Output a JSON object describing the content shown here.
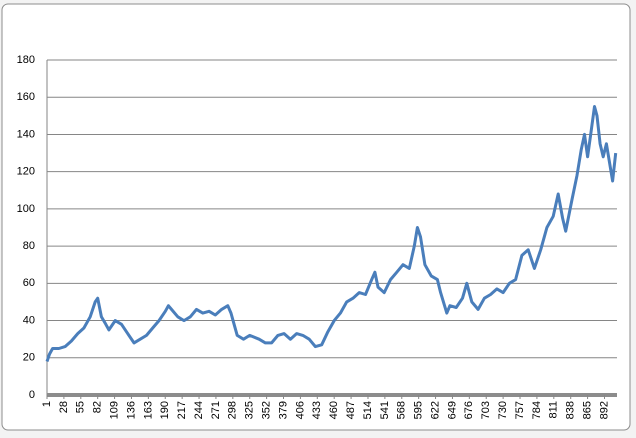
{
  "chart_data": {
    "type": "line",
    "x": [
      1,
      5,
      10,
      20,
      30,
      40,
      50,
      60,
      70,
      78,
      82,
      88,
      95,
      100,
      110,
      120,
      130,
      140,
      150,
      160,
      170,
      180,
      190,
      195,
      200,
      210,
      220,
      230,
      240,
      250,
      260,
      270,
      280,
      290,
      295,
      300,
      305,
      315,
      325,
      340,
      350,
      360,
      370,
      380,
      390,
      400,
      410,
      420,
      430,
      440,
      450,
      460,
      470,
      480,
      490,
      500,
      510,
      520,
      525,
      530,
      540,
      550,
      560,
      570,
      580,
      588,
      593,
      598,
      605,
      615,
      625,
      630,
      640,
      645,
      655,
      665,
      672,
      680,
      690,
      700,
      710,
      720,
      730,
      740,
      750,
      760,
      770,
      780,
      790,
      800,
      810,
      818,
      825,
      830,
      840,
      848,
      855,
      860,
      865,
      870,
      876,
      880,
      885,
      890,
      895,
      900,
      905,
      910
    ],
    "series": [
      {
        "color": "#4a7ebb",
        "values": [
          18,
          22,
          25,
          25,
          26,
          29,
          33,
          36,
          42,
          50,
          52,
          42,
          38,
          35,
          40,
          38,
          33,
          28,
          30,
          32,
          36,
          40,
          45,
          48,
          46,
          42,
          40,
          42,
          46,
          44,
          45,
          43,
          46,
          48,
          44,
          38,
          32,
          30,
          32,
          30,
          28,
          28,
          32,
          33,
          30,
          33,
          32,
          30,
          26,
          27,
          34,
          40,
          44,
          50,
          52,
          55,
          54,
          62,
          66,
          58,
          55,
          62,
          66,
          70,
          68,
          80,
          90,
          85,
          70,
          64,
          62,
          55,
          44,
          48,
          47,
          52,
          60,
          50,
          46,
          52,
          54,
          57,
          55,
          60,
          62,
          75,
          78,
          68,
          78,
          90,
          96,
          108,
          95,
          88,
          105,
          118,
          132,
          140,
          128,
          140,
          155,
          150,
          135,
          128,
          135,
          125,
          115,
          130
        ]
      }
    ],
    "xlim": [
      1,
      912
    ],
    "xticks": [
      1,
      28,
      55,
      82,
      109,
      136,
      163,
      190,
      217,
      244,
      271,
      298,
      325,
      352,
      379,
      406,
      433,
      460,
      487,
      514,
      541,
      568,
      595,
      622,
      649,
      676,
      703,
      730,
      757,
      784,
      811,
      838,
      865,
      892
    ],
    "ylim": [
      0,
      180
    ],
    "yticks": [
      0,
      20,
      40,
      60,
      80,
      100,
      120,
      140,
      160,
      180
    ],
    "grid": true
  }
}
